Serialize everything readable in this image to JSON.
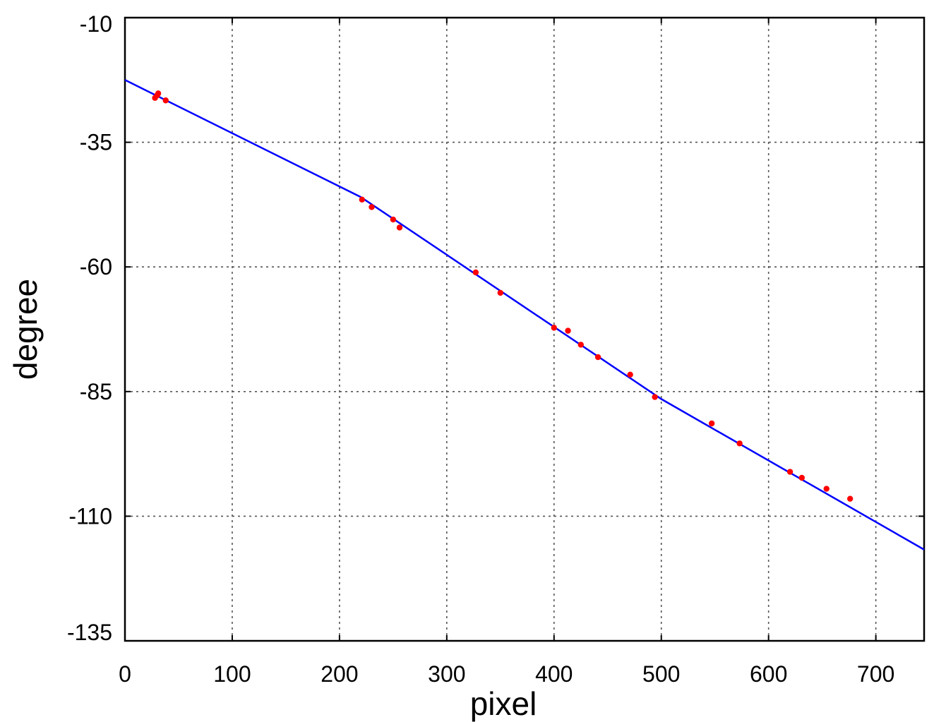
{
  "chart_data": {
    "type": "scatter",
    "xlabel": "pixel",
    "ylabel": "degree",
    "xlim": [
      0,
      745
    ],
    "ylim": [
      -135,
      -10
    ],
    "x_ticks": [
      0,
      100,
      200,
      300,
      400,
      500,
      600,
      700
    ],
    "y_ticks": [
      -10,
      -35,
      -60,
      -85,
      -110,
      -135
    ],
    "grid": true,
    "colors": {
      "points": "#ff0000",
      "fit_line": "#0000ff",
      "frame": "#000000"
    },
    "series": [
      {
        "kind": "points",
        "x": [
          28,
          30,
          31,
          38,
          221,
          230,
          250,
          256,
          327,
          350,
          400,
          413,
          425,
          441,
          471,
          494,
          547,
          573,
          620,
          631,
          654,
          676
        ],
        "y": [
          -26.1,
          -25.6,
          -25.2,
          -26.6,
          -46.5,
          -48.0,
          -50.5,
          -52.1,
          -61.1,
          -65.2,
          -72.2,
          -72.8,
          -75.6,
          -78.1,
          -81.6,
          -86.1,
          -91.4,
          -95.4,
          -101.1,
          -102.3,
          -104.5,
          -106.5
        ]
      },
      {
        "kind": "line",
        "x": [
          0,
          220,
          500,
          745
        ],
        "y": [
          -22.5,
          -46.0,
          -86.5,
          -116.7
        ]
      }
    ]
  }
}
